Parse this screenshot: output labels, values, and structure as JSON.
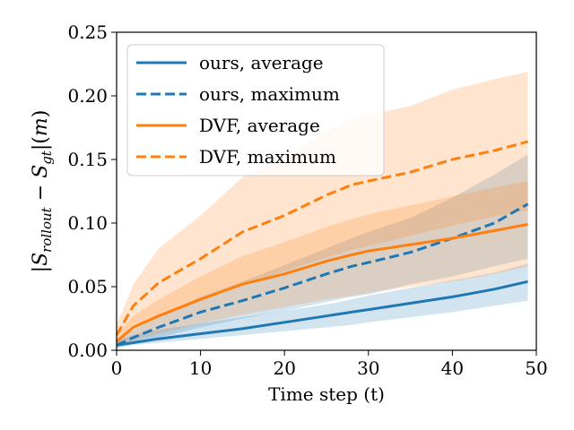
{
  "chart_data": {
    "type": "line",
    "xlabel": "Time step (t)",
    "ylabel": "|S_rollout - S_gt|(m)",
    "xlim": [
      0,
      50
    ],
    "ylim": [
      0,
      0.25
    ],
    "x_ticks": [
      "0",
      "10",
      "20",
      "30",
      "40",
      "50"
    ],
    "y_ticks": [
      "0.00",
      "0.05",
      "0.10",
      "0.15",
      "0.20",
      "0.25"
    ],
    "grid": false,
    "legend_position": "top-left",
    "x": [
      0,
      2,
      5,
      10,
      15,
      20,
      25,
      28,
      30,
      35,
      40,
      45,
      49
    ],
    "series": [
      {
        "name": "ours, average",
        "color": "#1f77b4",
        "style": "solid",
        "values": [
          0.004,
          0.006,
          0.009,
          0.013,
          0.017,
          0.022,
          0.027,
          0.03,
          0.032,
          0.037,
          0.042,
          0.048,
          0.054
        ],
        "band_low": [
          0.002,
          0.004,
          0.006,
          0.009,
          0.012,
          0.015,
          0.018,
          0.02,
          0.022,
          0.026,
          0.03,
          0.035,
          0.039
        ],
        "band_high": [
          0.008,
          0.012,
          0.016,
          0.021,
          0.026,
          0.031,
          0.036,
          0.04,
          0.043,
          0.049,
          0.055,
          0.061,
          0.068
        ]
      },
      {
        "name": "ours, maximum",
        "color": "#1f77b4",
        "style": "dashed",
        "values": [
          0.004,
          0.01,
          0.018,
          0.03,
          0.039,
          0.049,
          0.06,
          0.066,
          0.069,
          0.077,
          0.088,
          0.1,
          0.115
        ],
        "band_low": [
          0.002,
          0.006,
          0.01,
          0.018,
          0.025,
          0.031,
          0.038,
          0.042,
          0.044,
          0.052,
          0.058,
          0.066,
          0.072
        ],
        "band_high": [
          0.008,
          0.016,
          0.026,
          0.042,
          0.054,
          0.067,
          0.08,
          0.088,
          0.093,
          0.104,
          0.12,
          0.138,
          0.154
        ]
      },
      {
        "name": "DVF, average",
        "color": "#ff7f0e",
        "style": "solid",
        "values": [
          0.007,
          0.018,
          0.027,
          0.04,
          0.052,
          0.06,
          0.07,
          0.075,
          0.078,
          0.083,
          0.088,
          0.094,
          0.099
        ],
        "band_low": [
          0.003,
          0.008,
          0.013,
          0.021,
          0.028,
          0.034,
          0.04,
          0.043,
          0.045,
          0.05,
          0.054,
          0.06,
          0.066
        ],
        "band_high": [
          0.012,
          0.027,
          0.04,
          0.058,
          0.074,
          0.085,
          0.097,
          0.103,
          0.107,
          0.114,
          0.121,
          0.128,
          0.133
        ]
      },
      {
        "name": "DVF, maximum",
        "color": "#ff7f0e",
        "style": "dashed",
        "values": [
          0.012,
          0.035,
          0.053,
          0.072,
          0.093,
          0.106,
          0.122,
          0.13,
          0.133,
          0.14,
          0.15,
          0.157,
          0.164
        ],
        "band_low": [
          0.004,
          0.018,
          0.028,
          0.039,
          0.052,
          0.062,
          0.073,
          0.079,
          0.082,
          0.09,
          0.098,
          0.105,
          0.11
        ],
        "band_high": [
          0.02,
          0.052,
          0.08,
          0.106,
          0.136,
          0.152,
          0.172,
          0.182,
          0.185,
          0.192,
          0.205,
          0.213,
          0.219
        ]
      }
    ]
  }
}
